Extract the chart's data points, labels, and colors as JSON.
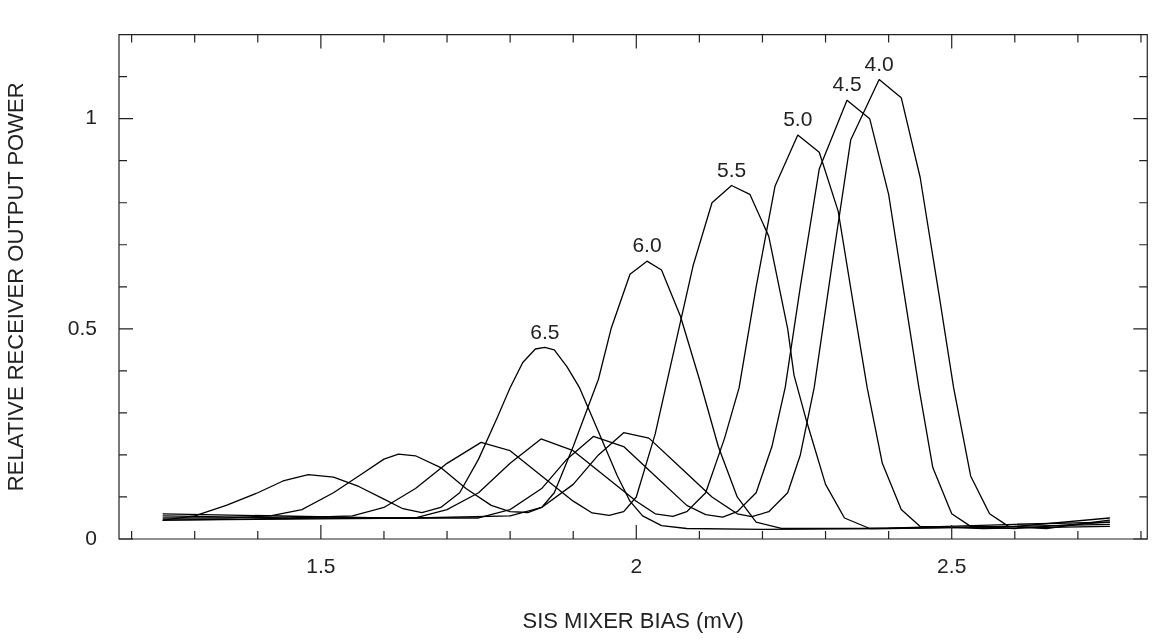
{
  "chart_data": {
    "type": "line",
    "xlabel": "SIS MIXER BIAS (mV)",
    "ylabel": "RELATIVE RECEIVER OUTPUT POWER",
    "xlim": [
      1.18,
      2.81
    ],
    "ylim": [
      0,
      1.2
    ],
    "xticks": [
      {
        "value": 1.2,
        "label": null
      },
      {
        "value": 1.3,
        "label": null
      },
      {
        "value": 1.4,
        "label": null
      },
      1.5,
      {
        "value": 1.6,
        "label": null
      },
      {
        "value": 1.7,
        "label": null
      },
      {
        "value": 1.8,
        "label": null
      },
      {
        "value": 1.9,
        "label": null
      },
      2,
      {
        "value": 2.1,
        "label": null
      },
      {
        "value": 2.2,
        "label": null
      },
      {
        "value": 2.3,
        "label": null
      },
      {
        "value": 2.4,
        "label": null
      },
      2.5,
      {
        "value": 2.6,
        "label": null
      },
      {
        "value": 2.7,
        "label": null
      },
      {
        "value": 2.8,
        "label": null
      }
    ],
    "yticks": [
      0,
      {
        "value": 0.1,
        "label": null
      },
      {
        "value": 0.2,
        "label": null
      },
      {
        "value": 0.3,
        "label": null
      },
      {
        "value": 0.4,
        "label": null
      },
      0.5,
      {
        "value": 0.6,
        "label": null
      },
      {
        "value": 0.7,
        "label": null
      },
      {
        "value": 0.8,
        "label": null
      },
      {
        "value": 0.9,
        "label": null
      },
      1,
      {
        "value": 1.1,
        "label": null
      }
    ],
    "grid": false,
    "legend": false,
    "marker": "none",
    "line_style": "solid",
    "series": [
      {
        "color": "#000000",
        "x": [
          1.25,
          1.3,
          1.35,
          1.4,
          1.44,
          1.48,
          1.52,
          1.56,
          1.6,
          1.63,
          1.66,
          1.69,
          1.72,
          1.75,
          1.78,
          1.8,
          1.82,
          1.84,
          1.855,
          1.87,
          1.89,
          1.91,
          1.93,
          1.95,
          1.97,
          1.99,
          2.01,
          2.04,
          2.08,
          2.2,
          2.4,
          2.6,
          2.75
        ],
        "values": [
          0.045,
          0.055,
          0.08,
          0.11,
          0.138,
          0.153,
          0.147,
          0.125,
          0.095,
          0.072,
          0.063,
          0.075,
          0.11,
          0.19,
          0.29,
          0.36,
          0.42,
          0.452,
          0.456,
          0.45,
          0.41,
          0.36,
          0.29,
          0.22,
          0.15,
          0.09,
          0.055,
          0.032,
          0.025,
          0.023,
          0.025,
          0.03,
          0.05
        ]
      },
      {
        "color": "#000000",
        "x": [
          1.25,
          1.35,
          1.42,
          1.47,
          1.52,
          1.56,
          1.6,
          1.623,
          1.65,
          1.69,
          1.73,
          1.77,
          1.8,
          1.828,
          1.85,
          1.87,
          1.9,
          1.94,
          1.96,
          1.99,
          2.017,
          2.04,
          2.07,
          2.1,
          2.13,
          2.16,
          2.19,
          2.23,
          2.4,
          2.6,
          2.75
        ],
        "values": [
          0.05,
          0.05,
          0.055,
          0.07,
          0.11,
          0.15,
          0.19,
          0.202,
          0.198,
          0.17,
          0.12,
          0.08,
          0.065,
          0.063,
          0.075,
          0.11,
          0.22,
          0.38,
          0.5,
          0.63,
          0.661,
          0.64,
          0.53,
          0.38,
          0.22,
          0.1,
          0.04,
          0.025,
          0.026,
          0.035,
          0.04
        ]
      },
      {
        "color": "#000000",
        "x": [
          1.25,
          1.45,
          1.55,
          1.6,
          1.65,
          1.7,
          1.754,
          1.8,
          1.85,
          1.9,
          1.93,
          1.957,
          1.98,
          2,
          2.03,
          2.06,
          2.09,
          2.12,
          2.151,
          2.18,
          2.21,
          2.24,
          2.25,
          2.27,
          2.3,
          2.33,
          2.37,
          2.5,
          2.75
        ],
        "values": [
          0.055,
          0.05,
          0.055,
          0.075,
          0.12,
          0.18,
          0.23,
          0.21,
          0.15,
          0.09,
          0.062,
          0.056,
          0.065,
          0.1,
          0.25,
          0.45,
          0.65,
          0.8,
          0.841,
          0.82,
          0.72,
          0.5,
          0.39,
          0.28,
          0.13,
          0.05,
          0.025,
          0.027,
          0.035
        ]
      },
      {
        "color": "#000000",
        "x": [
          1.25,
          1.5,
          1.65,
          1.7,
          1.75,
          1.8,
          1.849,
          1.9,
          1.95,
          2,
          2.03,
          2.058,
          2.08,
          2.11,
          2.14,
          2.163,
          2.19,
          2.22,
          2.256,
          2.29,
          2.32,
          2.345,
          2.366,
          2.39,
          2.42,
          2.45,
          2.55,
          2.75
        ],
        "values": [
          0.045,
          0.05,
          0.05,
          0.07,
          0.11,
          0.18,
          0.238,
          0.21,
          0.15,
          0.09,
          0.06,
          0.054,
          0.065,
          0.11,
          0.24,
          0.36,
          0.6,
          0.84,
          0.961,
          0.92,
          0.78,
          0.55,
          0.36,
          0.18,
          0.07,
          0.03,
          0.025,
          0.03
        ]
      },
      {
        "color": "#000000",
        "x": [
          1.25,
          1.6,
          1.75,
          1.8,
          1.85,
          1.89,
          1.932,
          1.98,
          2.03,
          2.08,
          2.11,
          2.137,
          2.16,
          2.19,
          2.215,
          2.236,
          2.26,
          2.29,
          2.334,
          2.37,
          2.4,
          2.425,
          2.448,
          2.47,
          2.5,
          2.53,
          2.6,
          2.75
        ],
        "values": [
          0.06,
          0.05,
          0.05,
          0.07,
          0.12,
          0.19,
          0.244,
          0.22,
          0.15,
          0.08,
          0.058,
          0.052,
          0.065,
          0.11,
          0.22,
          0.36,
          0.6,
          0.88,
          1.044,
          1,
          0.82,
          0.58,
          0.36,
          0.17,
          0.06,
          0.03,
          0.025,
          0.04
        ]
      },
      {
        "color": "#000000",
        "x": [
          1.25,
          1.65,
          1.8,
          1.85,
          1.9,
          1.94,
          1.98,
          2.02,
          2.07,
          2.12,
          2.16,
          2.183,
          2.21,
          2.24,
          2.26,
          2.282,
          2.31,
          2.34,
          2.385,
          2.42,
          2.45,
          2.48,
          2.503,
          2.53,
          2.56,
          2.59,
          2.65,
          2.75
        ],
        "values": [
          0.045,
          0.05,
          0.055,
          0.075,
          0.13,
          0.2,
          0.253,
          0.24,
          0.17,
          0.1,
          0.06,
          0.053,
          0.065,
          0.11,
          0.2,
          0.36,
          0.65,
          0.95,
          1.093,
          1.05,
          0.86,
          0.58,
          0.36,
          0.15,
          0.06,
          0.03,
          0.025,
          0.045
        ]
      }
    ],
    "annotations": [
      {
        "text": "6.5",
        "x": 1.855,
        "y": 0.456
      },
      {
        "text": "6.0",
        "x": 2.017,
        "y": 0.661
      },
      {
        "text": "5.5",
        "x": 2.151,
        "y": 0.841
      },
      {
        "text": "5.0",
        "x": 2.256,
        "y": 0.961
      },
      {
        "text": "4.5",
        "x": 2.334,
        "y": 1.044
      },
      {
        "text": "4.0",
        "x": 2.385,
        "y": 1.093
      }
    ]
  }
}
